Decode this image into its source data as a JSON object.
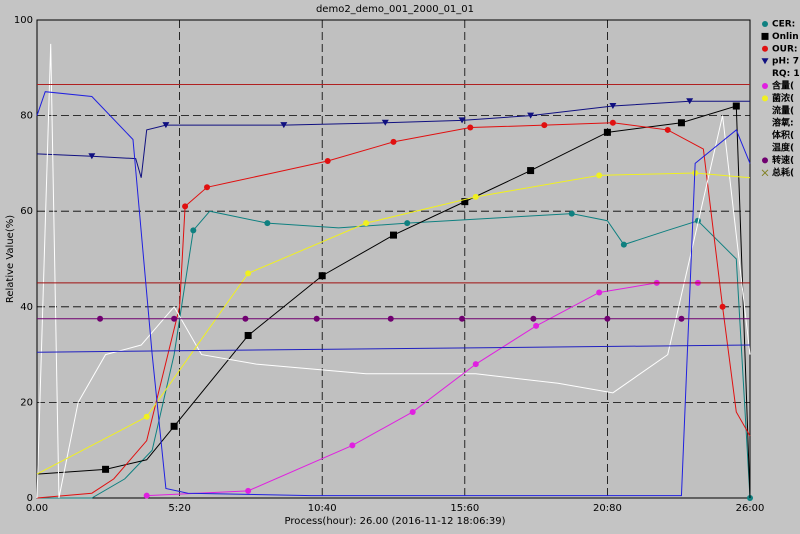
{
  "chart_data": {
    "type": "line",
    "title": "demo2_demo_001_2000_01_01",
    "xlabel": "Process(hour): 26.00 (2016-11-12 18:06:39)",
    "ylabel": "Relative Value(%)",
    "xlim": [
      0,
      26
    ],
    "ylim": [
      0,
      100
    ],
    "xticks": [
      {
        "value": 0,
        "label": "0.00"
      },
      {
        "value": 5.2,
        "label": "5:20"
      },
      {
        "value": 10.4,
        "label": "10:40"
      },
      {
        "value": 15.6,
        "label": "15:60"
      },
      {
        "value": 20.8,
        "label": "20:80"
      },
      {
        "value": 26,
        "label": "26:00"
      }
    ],
    "yticks": [
      0,
      20,
      40,
      60,
      80,
      100
    ],
    "grid": true,
    "series": [
      {
        "name": "CER:",
        "color": "#0f8080",
        "marker": "circle",
        "marker_at": [
          5,
          7,
          9,
          11,
          13,
          15,
          17
        ],
        "x": [
          0,
          2,
          3.2,
          4.2,
          5,
          5.7,
          6.3,
          8.4,
          11,
          13.5,
          16.5,
          19.5,
          20.8,
          21.4,
          23,
          24.1,
          25.5,
          26
        ],
        "values": [
          0,
          0,
          4,
          10,
          30,
          56,
          60,
          57.5,
          56.5,
          57.5,
          58.5,
          59.5,
          58,
          53,
          56,
          58,
          50,
          0
        ]
      },
      {
        "name": "Onlin",
        "color": "#000000",
        "marker": "square",
        "marker_at": [
          1,
          3,
          4,
          5,
          6,
          7,
          8,
          9,
          10,
          11
        ],
        "x": [
          0,
          2.5,
          4,
          5,
          7.7,
          10.4,
          13,
          15.6,
          18,
          20.8,
          23.5,
          25.5,
          26
        ],
        "values": [
          5,
          6,
          8,
          15,
          34,
          46.5,
          55,
          62,
          68.5,
          76.5,
          78.5,
          82,
          0
        ]
      },
      {
        "name": "OUR:",
        "color": "#e01010",
        "marker": "circle",
        "marker_at": [
          5,
          6,
          9,
          10,
          11,
          12,
          13,
          14,
          16
        ],
        "x": [
          0,
          2,
          2.8,
          4,
          5.2,
          5.4,
          6.2,
          7,
          8.6,
          10.6,
          13,
          15.8,
          18.5,
          21,
          23,
          24.3,
          25,
          25.5,
          26
        ],
        "values": [
          0,
          1,
          4,
          12,
          40,
          61,
          65,
          66,
          68,
          70.5,
          74.5,
          77.5,
          78,
          78.5,
          77,
          73,
          40,
          18,
          13
        ]
      },
      {
        "name": "pH: 7",
        "color": "#101080",
        "marker": "triangle",
        "marker_at": [
          1,
          5,
          7,
          8,
          9,
          10,
          11,
          12
        ],
        "x": [
          0,
          2,
          3.6,
          3.8,
          4,
          4.7,
          6,
          9,
          12.7,
          15.5,
          18,
          21,
          23.8,
          26
        ],
        "values": [
          72,
          71.5,
          71,
          67,
          77,
          78,
          78,
          78,
          78.5,
          79,
          80,
          82,
          83,
          83
        ]
      },
      {
        "name": "RQ: 1",
        "color": "#ffffff",
        "marker": "none",
        "marker_at": [],
        "x": [
          0,
          0.5,
          0.8,
          1.5,
          2.5,
          3.8,
          5,
          6,
          8,
          12,
          16,
          19,
          21,
          23,
          25,
          26
        ],
        "values": [
          0,
          95,
          0,
          20,
          30,
          32,
          40,
          30,
          28,
          26,
          26,
          24,
          22,
          30,
          80,
          30
        ]
      },
      {
        "name": "含量(",
        "color": "#e020e0",
        "marker": "circle",
        "marker_at": [
          0,
          1,
          2,
          3,
          4,
          5,
          6,
          7,
          8
        ],
        "x": [
          4,
          7.7,
          11.5,
          13.7,
          16,
          18.2,
          20.5,
          22.6,
          24.1
        ],
        "values": [
          0.5,
          1.5,
          11,
          18,
          28,
          36,
          43,
          45,
          45
        ]
      },
      {
        "name": "菌浓(",
        "color": "#f0f020",
        "marker": "circle",
        "marker_at": [
          1,
          2,
          3,
          4,
          5,
          6
        ],
        "x": [
          0,
          4,
          7.7,
          12,
          16,
          20.5,
          24,
          26
        ],
        "values": [
          5,
          17,
          47,
          57.5,
          63,
          67.5,
          68,
          67
        ]
      },
      {
        "name": "流量(",
        "color": "#a01010",
        "marker": "none",
        "marker_at": [],
        "x": [
          0,
          26
        ],
        "values": [
          45,
          45
        ]
      },
      {
        "name": "溶氧:",
        "color": "#2020e0",
        "marker": "none",
        "marker_at": [],
        "x": [
          0,
          0.3,
          2,
          3.5,
          4.2,
          4.7,
          5.5,
          10,
          20,
          23.5,
          24,
          25.5,
          26
        ],
        "values": [
          80,
          85,
          84,
          75,
          30,
          2,
          1,
          0.5,
          0.5,
          0.5,
          70,
          77,
          70
        ]
      },
      {
        "name": "体积(",
        "color": "#2020c0",
        "marker": "none",
        "marker_at": [],
        "x": [
          0,
          26
        ],
        "values": [
          30.5,
          32
        ]
      },
      {
        "name": "温度(",
        "color": "#b02020",
        "marker": "none",
        "marker_at": [],
        "x": [
          0,
          26
        ],
        "values": [
          86.5,
          86.5
        ]
      },
      {
        "name": "转速(",
        "color": "#700070",
        "marker": "circle",
        "marker_at": [
          1,
          2,
          3,
          4,
          5,
          6,
          7,
          8,
          9
        ],
        "x": [
          0,
          2.3,
          5,
          7.6,
          10.2,
          12.9,
          15.5,
          18.1,
          20.8,
          23.5,
          26
        ],
        "values": [
          37.5,
          37.5,
          37.5,
          37.5,
          37.5,
          37.5,
          37.5,
          37.5,
          37.5,
          37.5,
          37.5
        ]
      },
      {
        "name": "总耗(",
        "color": "#808020",
        "marker": "x",
        "marker_at": [],
        "x": [],
        "values": []
      }
    ]
  }
}
